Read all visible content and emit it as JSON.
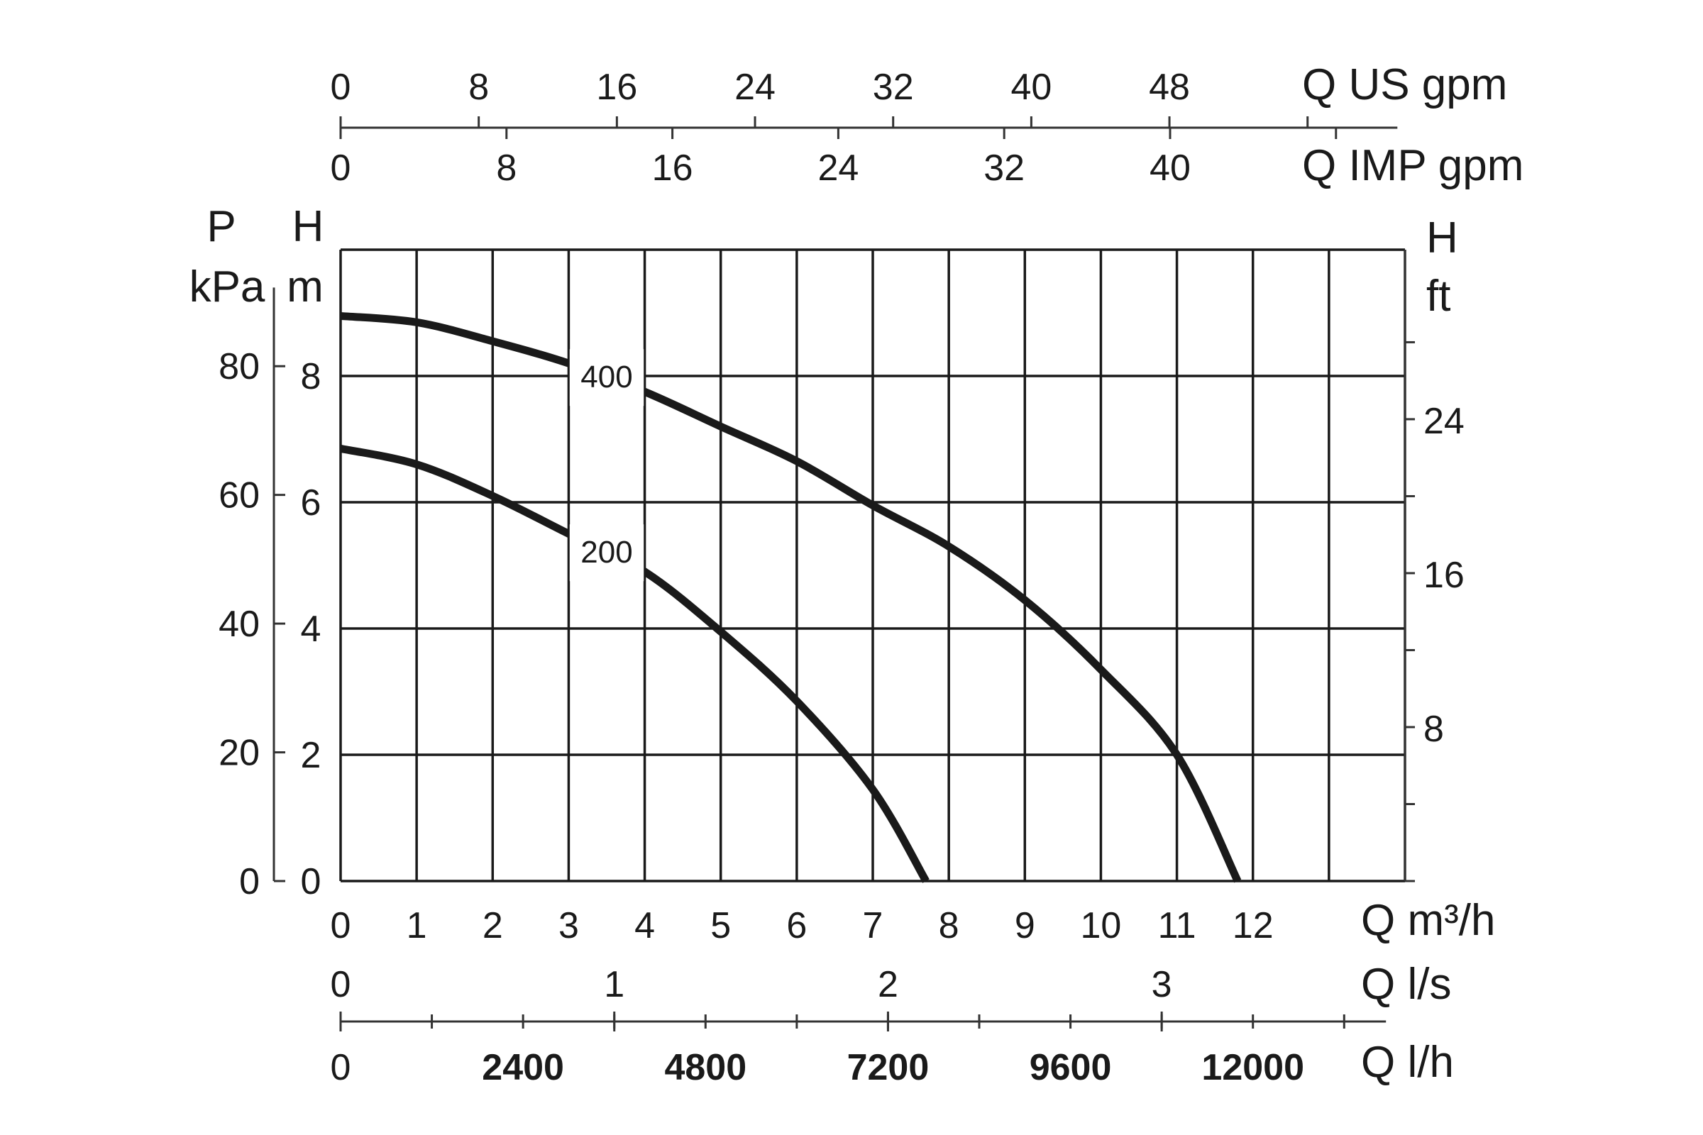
{
  "chart_data": {
    "type": "line",
    "title": "",
    "series": [
      {
        "name": "400",
        "x": [
          0,
          1,
          2,
          3,
          4,
          5,
          6,
          7,
          8,
          9,
          10,
          11,
          11.8
        ],
        "y": [
          8.95,
          8.85,
          8.55,
          8.2,
          7.75,
          7.2,
          6.65,
          5.95,
          5.3,
          4.45,
          3.35,
          2.0,
          0
        ]
      },
      {
        "name": "200",
        "x": [
          0,
          1,
          2,
          3,
          4,
          5,
          6,
          7,
          7.7
        ],
        "y": [
          6.85,
          6.6,
          6.1,
          5.5,
          4.9,
          3.95,
          2.85,
          1.45,
          0
        ]
      }
    ],
    "xlim": [
      0,
      14
    ],
    "ylim": [
      0,
      10
    ],
    "grid": true,
    "axes": {
      "flow_m3h": {
        "label": "Q m³/h",
        "ticks": [
          "0",
          "1",
          "2",
          "3",
          "4",
          "5",
          "6",
          "7",
          "8",
          "9",
          "10",
          "11",
          "12"
        ]
      },
      "flow_ls": {
        "label": "Q l/s",
        "ticks": [
          "0",
          "1",
          "2",
          "3"
        ]
      },
      "flow_lh": {
        "label": "Q l/h",
        "ticks": [
          "0",
          "2400",
          "4800",
          "7200",
          "9600",
          "12000"
        ]
      },
      "flow_us_gpm": {
        "label": "Q US gpm",
        "ticks": [
          "0",
          "8",
          "16",
          "24",
          "32",
          "40",
          "48"
        ]
      },
      "flow_imp_gpm": {
        "label": "Q IMP gpm",
        "ticks": [
          "0",
          "8",
          "16",
          "24",
          "32",
          "40"
        ]
      },
      "head_m": {
        "label_top": "H",
        "label_bottom": "m",
        "ticks": [
          "0",
          "2",
          "4",
          "6",
          "8"
        ]
      },
      "pressure_kpa": {
        "label_top": "P",
        "label_bottom": "kPa",
        "ticks": [
          "0",
          "20",
          "40",
          "60",
          "80"
        ]
      },
      "head_ft": {
        "label_top": "H",
        "label_bottom": "ft",
        "ticks": [
          "8",
          "16",
          "24"
        ]
      }
    }
  }
}
